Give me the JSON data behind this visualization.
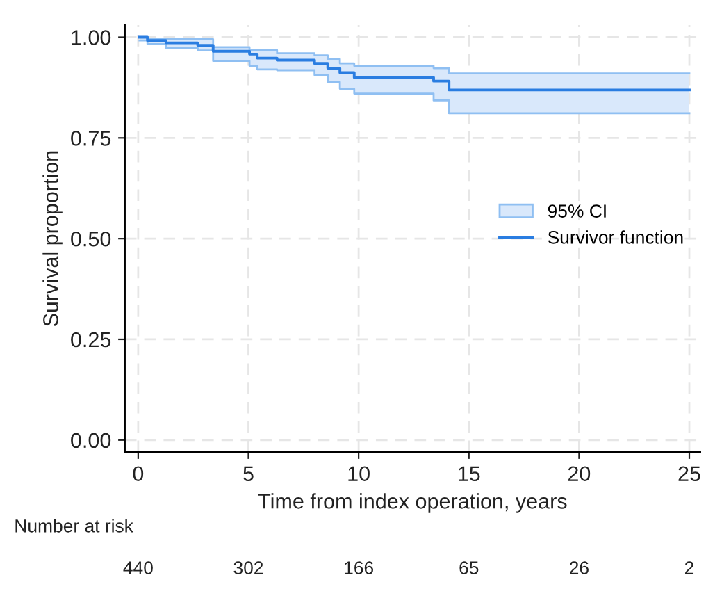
{
  "chart_data": {
    "type": "step",
    "xlabel": "Time from index operation, years",
    "ylabel": "Survival proportion",
    "x": [
      0.06,
      0.42,
      1.26,
      2.7,
      3.4,
      5.05,
      5.4,
      6.3,
      8.0,
      8.6,
      9.15,
      9.8,
      13.4,
      14.1,
      25.0
    ],
    "series": [
      {
        "name": "Survivor function",
        "color": "#2a7de1",
        "values": [
          1.0,
          0.992,
          0.986,
          0.98,
          0.965,
          0.958,
          0.948,
          0.943,
          0.935,
          0.923,
          0.912,
          0.9,
          0.891,
          0.869,
          0.869
        ],
        "lower": [
          0.992,
          0.983,
          0.973,
          0.967,
          0.941,
          0.929,
          0.92,
          0.918,
          0.906,
          0.889,
          0.872,
          0.86,
          0.843,
          0.811,
          0.811
        ],
        "upper": [
          1.0,
          0.995,
          0.995,
          0.995,
          0.975,
          0.968,
          0.968,
          0.96,
          0.955,
          0.946,
          0.935,
          0.929,
          0.923,
          0.91,
          0.91
        ]
      },
      {
        "name": "95% CI",
        "color": "#8fbff2",
        "values": [
          1.0,
          0.995,
          0.995,
          0.995,
          0.975,
          0.968,
          0.968,
          0.96,
          0.955,
          0.946,
          0.935,
          0.929,
          0.923,
          0.91,
          0.91
        ]
      },
      {
        "color": "#8fbff2",
        "values": [
          0.992,
          0.983,
          0.973,
          0.967,
          0.941,
          0.929,
          0.92,
          0.918,
          0.906,
          0.889,
          0.872,
          0.86,
          0.843,
          0.811,
          0.811
        ]
      }
    ],
    "xlim": [
      -0.6,
      25.5
    ],
    "ylim": [
      -0.03,
      1.03
    ],
    "xticks": [
      0,
      5,
      10,
      15,
      20,
      25
    ],
    "yticks": [
      {
        "value": 0,
        "label": "0.00"
      },
      {
        "value": 0.25,
        "label": "0.25"
      },
      {
        "value": 0.5,
        "label": "0.50"
      },
      {
        "value": 0.75,
        "label": "0.75"
      },
      {
        "value": 1,
        "label": "1.00"
      }
    ],
    "grid": true,
    "legend": "right",
    "annotations": [
      "Number at risk",
      "440",
      "302",
      "166",
      "65",
      "26",
      "2"
    ]
  }
}
